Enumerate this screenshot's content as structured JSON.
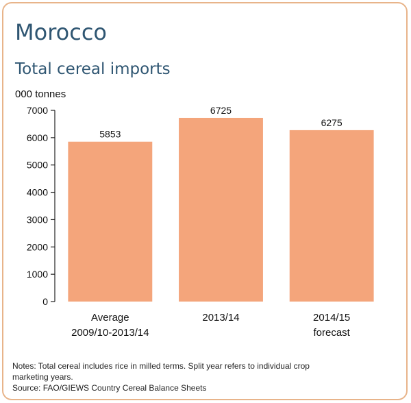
{
  "title": "Morocco",
  "subtitle": "Total cereal imports",
  "chart_data": {
    "type": "bar",
    "title": "Total cereal imports",
    "ylabel": "000 tonnes",
    "xlabel": "",
    "ylim": [
      0,
      7000
    ],
    "yticks": [
      0,
      1000,
      2000,
      3000,
      4000,
      5000,
      6000,
      7000
    ],
    "categories": [
      [
        "Average",
        "2009/10-2013/14"
      ],
      [
        "2013/14"
      ],
      [
        "2014/15",
        "forecast"
      ]
    ],
    "values": [
      5853,
      6725,
      6275
    ],
    "data_labels": [
      "5853",
      "6725",
      "6275"
    ],
    "bar_color": "#f4a57b",
    "grid": false
  },
  "notes": {
    "line1": "Notes: Total cereal includes rice in milled terms. Split year refers to individual crop",
    "line2": "marketing years.",
    "source": "Source: FAO/GIEWS Country Cereal Balance Sheets"
  },
  "colors": {
    "frame": "#e8b48a",
    "title": "#2f5672",
    "bar": "#f4a57b"
  }
}
